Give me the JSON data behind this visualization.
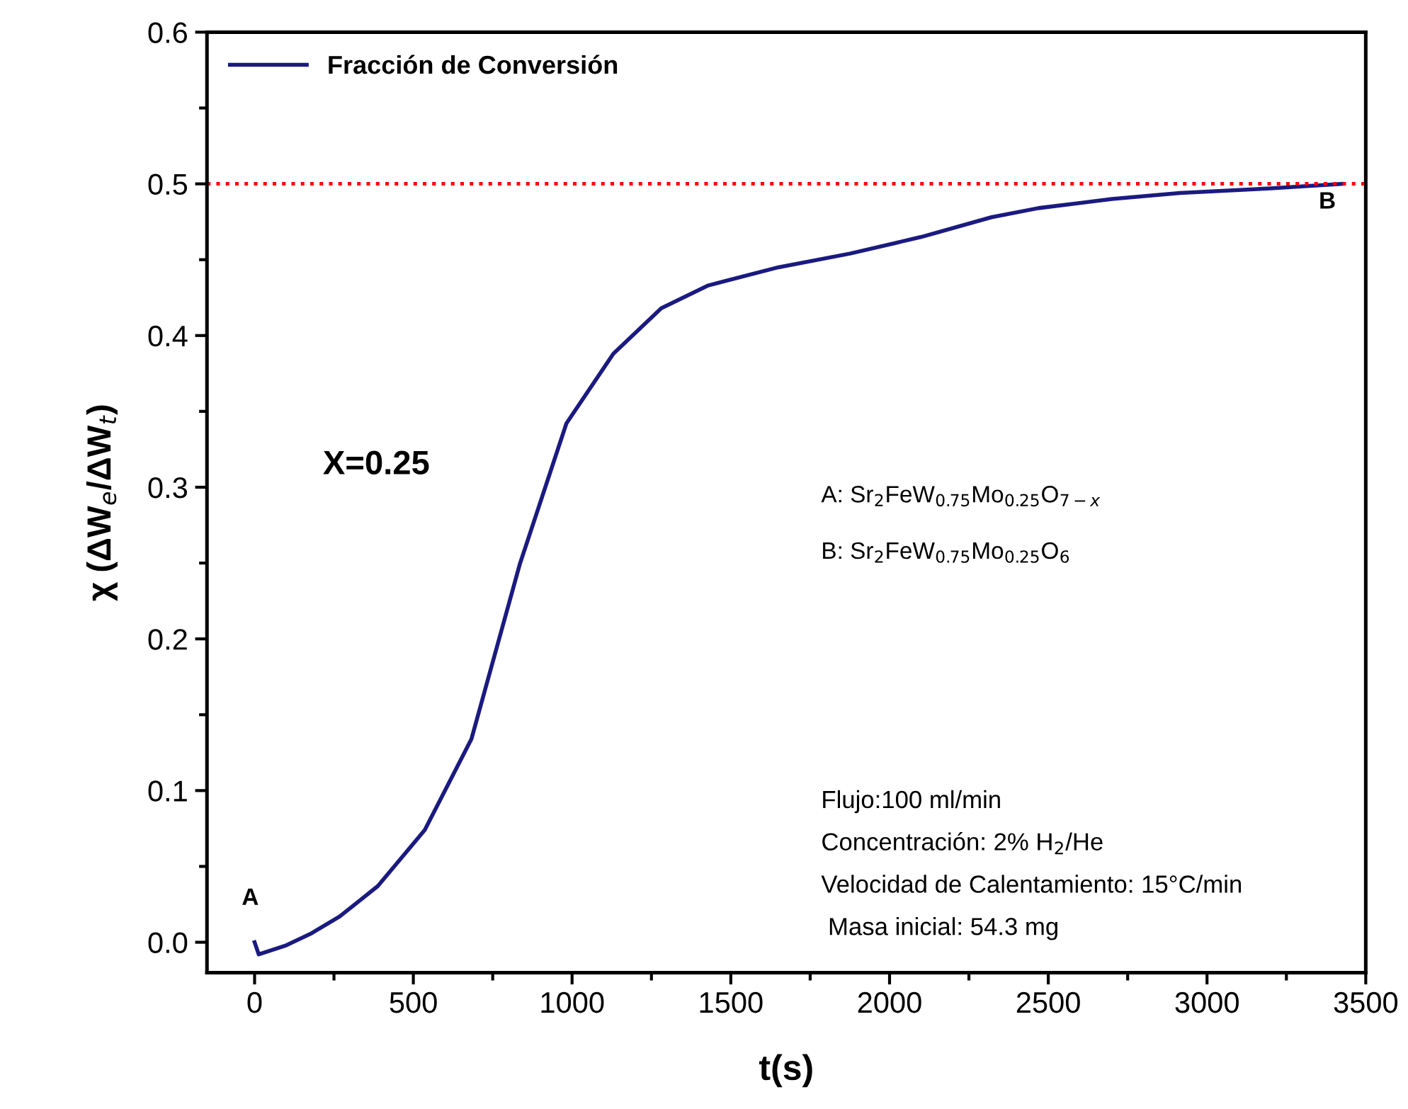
{
  "chart_data": {
    "type": "line",
    "xlabel": "t(s)",
    "ylabel": "χ (ΔW$_{e}$/ΔW$_{t}$)",
    "x": [
      0,
      13,
      100,
      180,
      268,
      388,
      536,
      683,
      835,
      982,
      1130,
      1281,
      1429,
      1650,
      1875,
      2100,
      2321,
      2469,
      2700,
      2915,
      3200,
      3424
    ],
    "series": [
      {
        "name": "Fracción de Conversión",
        "color": "#1a1a80",
        "values": [
          0.0,
          -0.008,
          -0.002,
          0.006,
          0.017,
          0.037,
          0.074,
          0.134,
          0.249,
          0.342,
          0.388,
          0.418,
          0.433,
          0.445,
          0.454,
          0.465,
          0.478,
          0.484,
          0.49,
          0.494,
          0.497,
          0.5
        ]
      }
    ],
    "xlim": [
      -150,
      3500
    ],
    "ylim": [
      -0.02,
      0.6
    ],
    "xticks": [
      0,
      {
        "value": 250,
        "label": null
      },
      500,
      {
        "value": 750,
        "label": null
      },
      1000,
      {
        "value": 1250,
        "label": null
      },
      1500,
      {
        "value": 1750,
        "label": null
      },
      2000,
      {
        "value": 2250,
        "label": null
      },
      2500,
      {
        "value": 2750,
        "label": null
      },
      3000,
      {
        "value": 3250,
        "label": null
      },
      3500
    ],
    "yticks": [
      {
        "value": 0,
        "label": "0.0"
      },
      {
        "value": 0.05,
        "label": null
      },
      0.1,
      {
        "value": 0.15,
        "label": null
      },
      0.2,
      {
        "value": 0.25,
        "label": null
      },
      0.3,
      {
        "value": 0.35,
        "label": null
      },
      0.4,
      {
        "value": 0.45,
        "label": null
      },
      0.5,
      {
        "value": 0.55,
        "label": null
      },
      0.6
    ],
    "ref_lines": [
      {
        "axis": "y",
        "value": 0.5,
        "label": null,
        "color": "#ff0000",
        "line_style": "dotted"
      }
    ],
    "annotations": [
      "A",
      {
        "text": "B",
        "x": 3379,
        "y": 0.495
      },
      "X=0.25",
      "A: Sr$_{2}$FeW$_{0.75}$Mo$_{0.25}$O$_{7−x}$",
      "B: Sr$_{2}$FeW$_{0.75}$Mo$_{0.25}$O$_{6}$",
      "Flujo:100 ml/min",
      "Concentración: 2% H$_{2}$/He",
      "Velocidad de Calentamiento: 15°C/min",
      " Masa inicial: 54.3 mg"
    ],
    "legend": "top left",
    "grid": false,
    "marker": "none",
    "line_style": "solid"
  }
}
